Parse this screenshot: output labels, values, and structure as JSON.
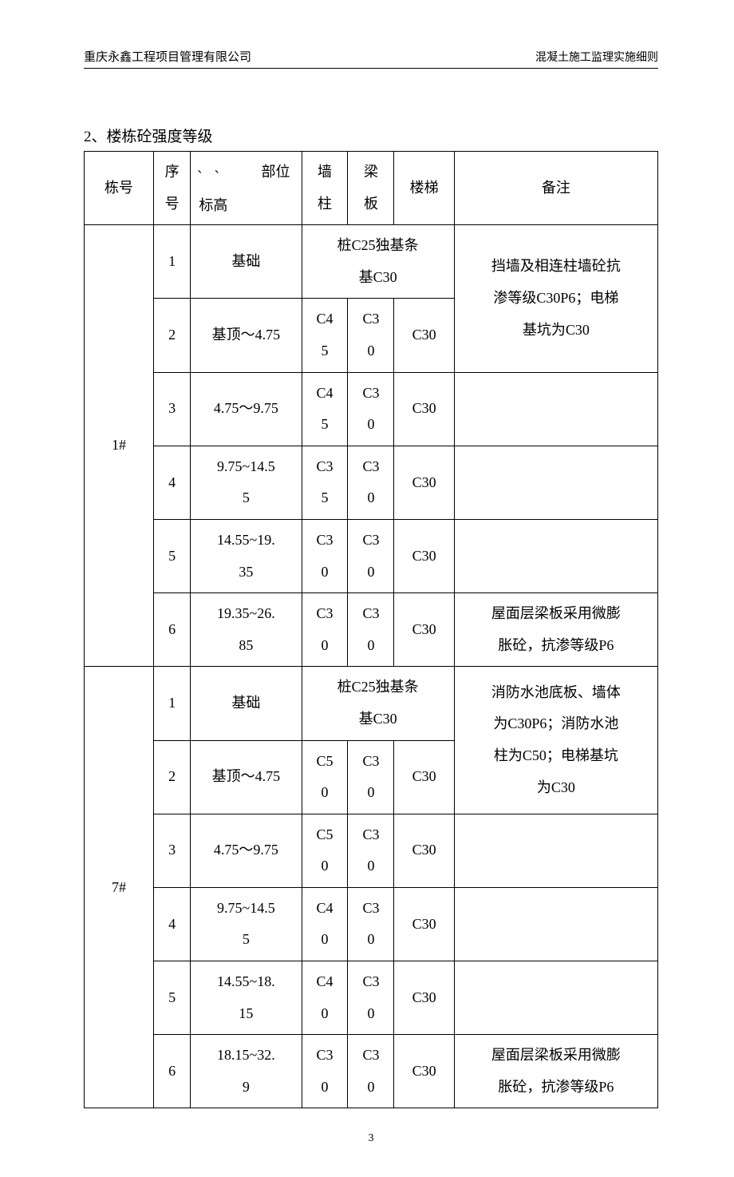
{
  "header": {
    "left": "重庆永鑫工程项目管理有限公司",
    "right": "混凝土施工监理实施细则"
  },
  "section_title": "2、楼栋砼强度等级",
  "columns": {
    "building": "栋号",
    "seq_top": "序",
    "seq_bot": "号",
    "diag_ticks": "、 、",
    "diag_top": "部位",
    "diag_bot": "标高",
    "wall_top": "墙",
    "wall_bot": "柱",
    "beam_top": "梁",
    "beam_bot": "板",
    "stair": "楼梯",
    "remark": "备注"
  },
  "b1": {
    "name": "1#",
    "rows": [
      {
        "seq": "1",
        "part": "基础",
        "merged_a": "桩C25独基条",
        "merged_b": "基C30",
        "remark_a": "挡墙及相连柱墙砼抗",
        "remark_b": "渗等级C30P6；电梯",
        "remark_c": "基坑为C30"
      },
      {
        "seq": "2",
        "part": "基顶～4.75",
        "wall_a": "C4",
        "wall_b": "5",
        "beam_a": "C3",
        "beam_b": "0",
        "stair": "C30"
      },
      {
        "seq": "3",
        "part": "4.75～9.75",
        "wall_a": "C4",
        "wall_b": "5",
        "beam_a": "C3",
        "beam_b": "0",
        "stair": "C30",
        "remark": ""
      },
      {
        "seq": "4",
        "part_a": "9.75~14.5",
        "part_b": "5",
        "wall_a": "C3",
        "wall_b": "5",
        "beam_a": "C3",
        "beam_b": "0",
        "stair": "C30",
        "remark": ""
      },
      {
        "seq": "5",
        "part_a": "14.55~19.",
        "part_b": "35",
        "wall_a": "C3",
        "wall_b": "0",
        "beam_a": "C3",
        "beam_b": "0",
        "stair": "C30",
        "remark": ""
      },
      {
        "seq": "6",
        "part_a": "19.35~26.",
        "part_b": "85",
        "wall_a": "C3",
        "wall_b": "0",
        "beam_a": "C3",
        "beam_b": "0",
        "stair": "C30",
        "remark_a": "屋面层梁板采用微膨",
        "remark_b": "胀砼，抗渗等级P6"
      }
    ]
  },
  "b7": {
    "name": "7#",
    "rows": [
      {
        "seq": "1",
        "part": "基础",
        "merged_a": "桩C25独基条",
        "merged_b": "基C30",
        "remark_a": "消防水池底板、墙体",
        "remark_b": "为C30P6；消防水池",
        "remark_c": "柱为C50；电梯基坑",
        "remark_d": "为C30"
      },
      {
        "seq": "2",
        "part": "基顶～4.75",
        "wall_a": "C5",
        "wall_b": "0",
        "beam_a": "C3",
        "beam_b": "0",
        "stair": "C30"
      },
      {
        "seq": "3",
        "part": "4.75～9.75",
        "wall_a": "C5",
        "wall_b": "0",
        "beam_a": "C3",
        "beam_b": "0",
        "stair": "C30",
        "remark": ""
      },
      {
        "seq": "4",
        "part_a": "9.75~14.5",
        "part_b": "5",
        "wall_a": "C4",
        "wall_b": "0",
        "beam_a": "C3",
        "beam_b": "0",
        "stair": "C30",
        "remark": ""
      },
      {
        "seq": "5",
        "part_a": "14.55~18.",
        "part_b": "15",
        "wall_a": "C4",
        "wall_b": "0",
        "beam_a": "C3",
        "beam_b": "0",
        "stair": "C30",
        "remark": ""
      },
      {
        "seq": "6",
        "part_a": "18.15~32.",
        "part_b": "9",
        "wall_a": "C3",
        "wall_b": "0",
        "beam_a": "C3",
        "beam_b": "0",
        "stair": "C30",
        "remark_a": "屋面层梁板采用微膨",
        "remark_b": "胀砼，抗渗等级P6"
      }
    ]
  },
  "page_number": "3"
}
